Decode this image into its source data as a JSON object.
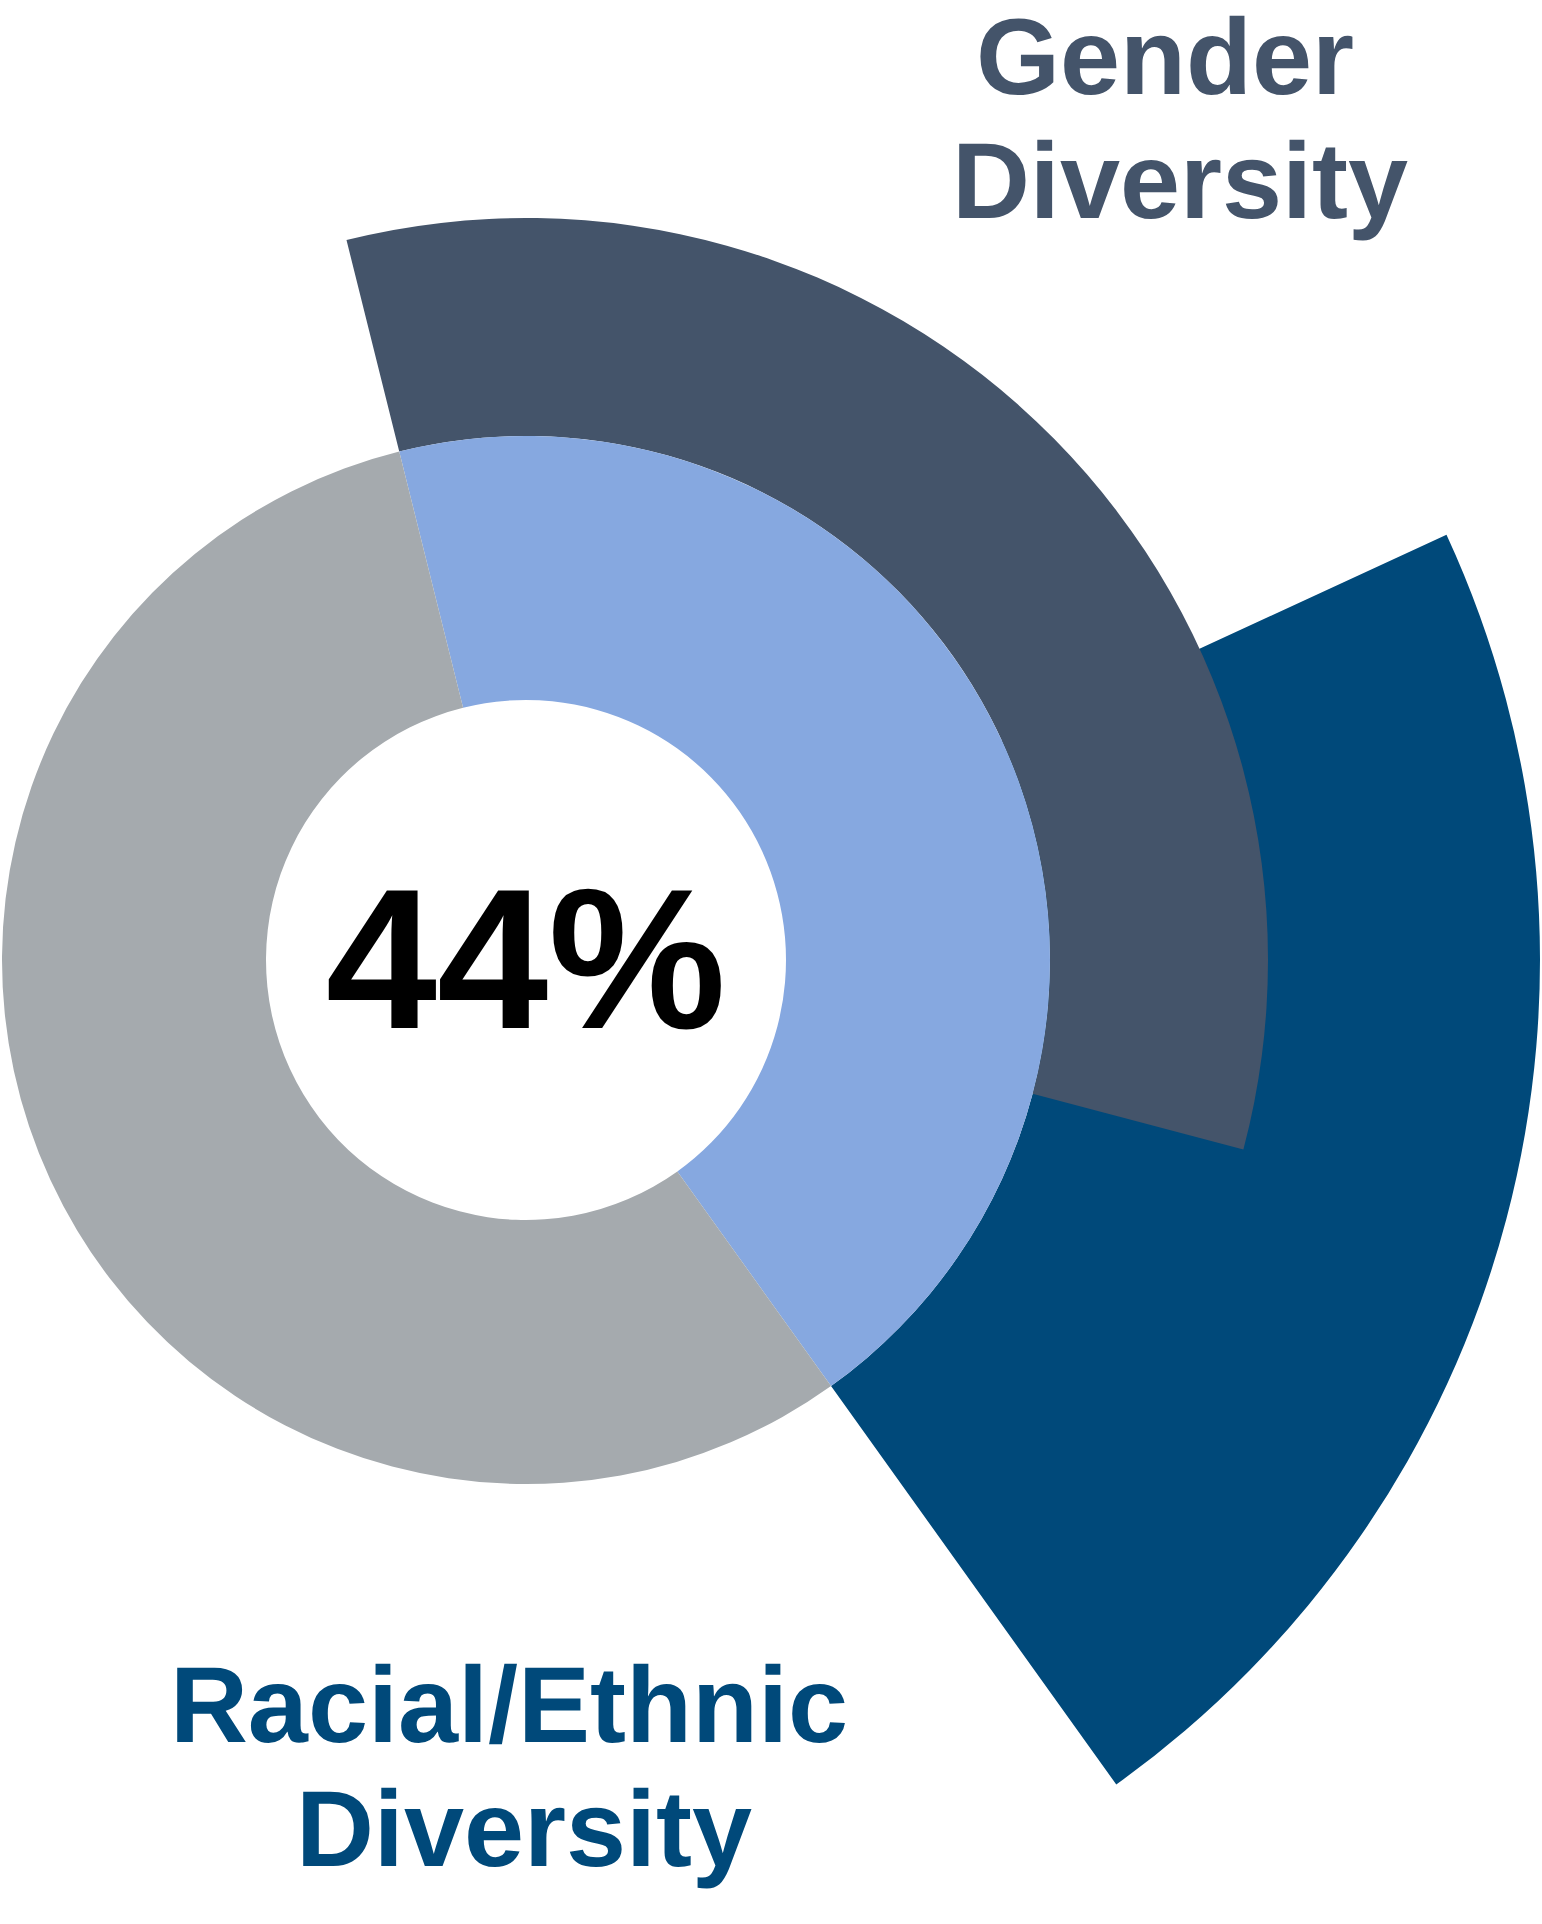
{
  "chart_data": {
    "type": "donut",
    "categories": [
      null,
      null
    ],
    "values": [
      44,
      56
    ],
    "colors": [
      "#86a8e0",
      "#a5aaae"
    ],
    "value_labels": [
      "44%",
      null
    ],
    "annotations": [
      "Racial/Ethnic Diversity",
      "Gender Diversity"
    ]
  }
}
